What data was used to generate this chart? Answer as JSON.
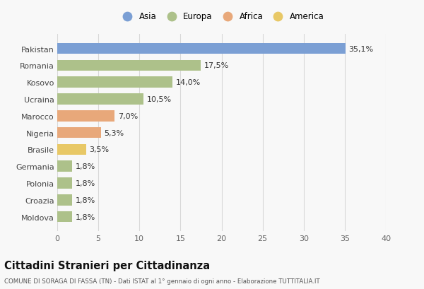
{
  "categories": [
    "Pakistan",
    "Romania",
    "Kosovo",
    "Ucraina",
    "Marocco",
    "Nigeria",
    "Brasile",
    "Germania",
    "Polonia",
    "Croazia",
    "Moldova"
  ],
  "values": [
    35.1,
    17.5,
    14.0,
    10.5,
    7.0,
    5.3,
    3.5,
    1.8,
    1.8,
    1.8,
    1.8
  ],
  "labels": [
    "35,1%",
    "17,5%",
    "14,0%",
    "10,5%",
    "7,0%",
    "5,3%",
    "3,5%",
    "1,8%",
    "1,8%",
    "1,8%",
    "1,8%"
  ],
  "colors": [
    "#7b9fd4",
    "#adc18a",
    "#adc18a",
    "#adc18a",
    "#e8a87a",
    "#e8a87a",
    "#e8c866",
    "#adc18a",
    "#adc18a",
    "#adc18a",
    "#adc18a"
  ],
  "legend_labels": [
    "Asia",
    "Europa",
    "Africa",
    "America"
  ],
  "legend_colors": [
    "#7b9fd4",
    "#adc18a",
    "#e8a87a",
    "#e8c866"
  ],
  "title": "Cittadini Stranieri per Cittadinanza",
  "subtitle": "COMUNE DI SORAGA DI FASSA (TN) - Dati ISTAT al 1° gennaio di ogni anno - Elaborazione TUTTITALIA.IT",
  "xlim": [
    0,
    40
  ],
  "xticks": [
    0,
    5,
    10,
    15,
    20,
    25,
    30,
    35,
    40
  ],
  "background_color": "#f8f8f8",
  "grid_color": "#d8d8d8",
  "bar_height": 0.65,
  "label_fontsize": 8,
  "ytick_fontsize": 8,
  "xtick_fontsize": 8
}
